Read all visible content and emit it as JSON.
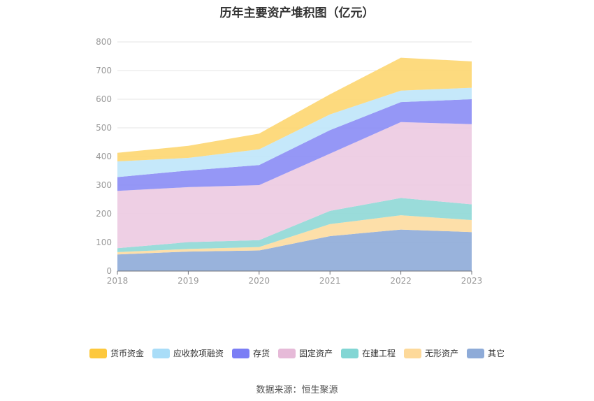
{
  "chart_data": {
    "type": "area",
    "title": "历年主要资产堆积图（亿元）",
    "categories": [
      "2018",
      "2019",
      "2020",
      "2021",
      "2022",
      "2023"
    ],
    "ylim": [
      0,
      800
    ],
    "yticks": [
      0,
      100,
      200,
      300,
      400,
      500,
      600,
      700,
      800
    ],
    "stacked": true,
    "grid": true,
    "legend_position": "bottom",
    "series": [
      {
        "name": "其它",
        "color": "#8eabd8",
        "values": [
          58,
          68,
          72,
          122,
          145,
          136
        ]
      },
      {
        "name": "无形资产",
        "color": "#fddba0",
        "values": [
          8,
          9,
          12,
          42,
          50,
          42
        ]
      },
      {
        "name": "在建工程",
        "color": "#8fd8d6",
        "values": [
          14,
          24,
          24,
          46,
          60,
          55
        ]
      },
      {
        "name": "固定资产",
        "color": "#eccae1",
        "values": [
          200,
          192,
          192,
          200,
          265,
          280
        ]
      },
      {
        "name": "存货",
        "color": "#8a8cf5",
        "values": [
          48,
          58,
          70,
          82,
          70,
          87
        ]
      },
      {
        "name": "应收款项融资",
        "color": "#bfe6fa",
        "values": [
          55,
          44,
          55,
          55,
          40,
          40
        ]
      },
      {
        "name": "货币资金",
        "color": "#fdd670",
        "values": [
          30,
          42,
          55,
          70,
          115,
          92
        ]
      }
    ]
  },
  "legend": {
    "items": [
      {
        "label": "货币资金",
        "color": "#fdc83c"
      },
      {
        "label": "应收款项融资",
        "color": "#a9ddf8"
      },
      {
        "label": "存货",
        "color": "#7b7ef5"
      },
      {
        "label": "固定资产",
        "color": "#e6bad8"
      },
      {
        "label": "在建工程",
        "color": "#82d6d4"
      },
      {
        "label": "无形资产",
        "color": "#fdd99a"
      },
      {
        "label": "其它",
        "color": "#8eabd8"
      }
    ]
  },
  "footer": {
    "source": "数据来源：恒生聚源"
  }
}
